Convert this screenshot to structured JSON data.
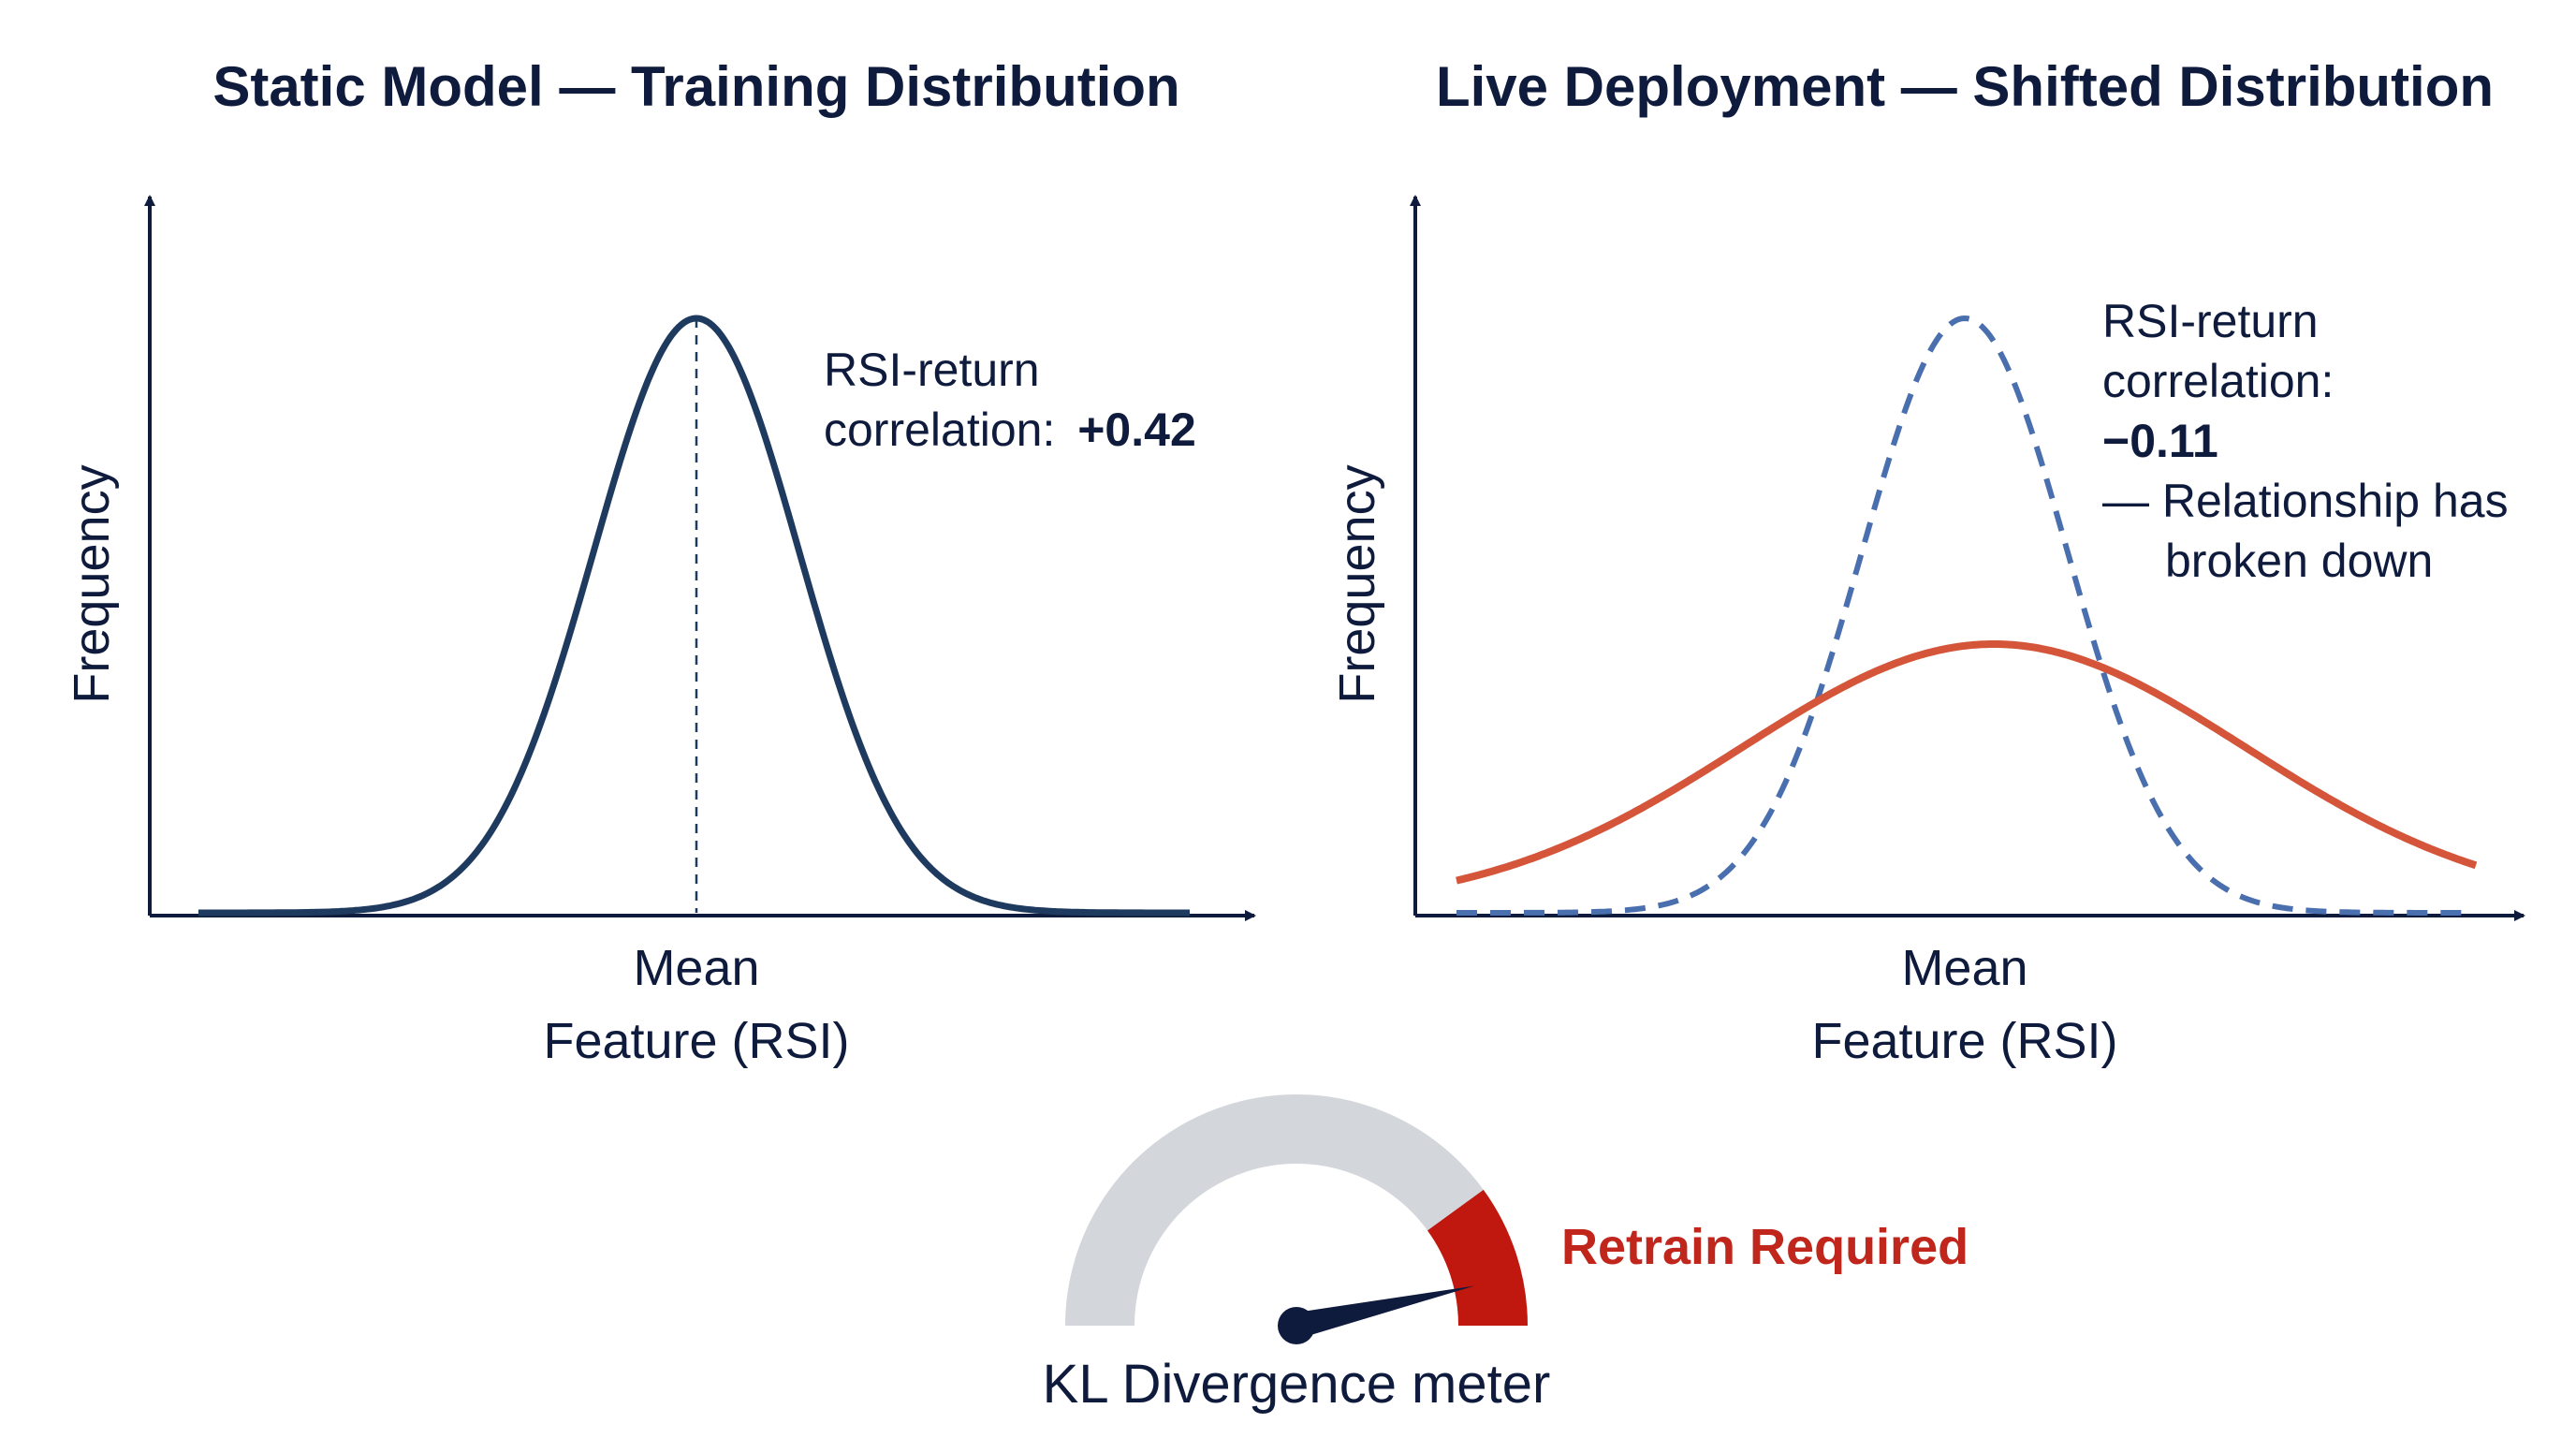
{
  "left_panel": {
    "title": "Static Model — Training Distribution",
    "ylabel": "Frequency",
    "xlabel_line1": "Mean",
    "xlabel_line2": "Feature (RSI)",
    "note_line1": "RSI-return",
    "note_line2_prefix": "correlation: ",
    "note_value": "+0.42"
  },
  "right_panel": {
    "title": "Live Deployment — Shifted Distribution",
    "ylabel": "Frequency",
    "xlabel_line1": "Mean",
    "xlabel_line2": "Feature (RSI)",
    "note_line1": "RSI-return",
    "note_line2": "correlation:",
    "note_value": "−0.11",
    "note_line4": "— Relationship has",
    "note_line5": "broken down"
  },
  "gauge": {
    "label": "KL Divergence meter",
    "alert_text": "Retrain Required",
    "level": 0.93,
    "danger_start": 0.8
  },
  "colors": {
    "navy": "#1e3a5f",
    "dashed_blue": "#4a6fae",
    "shifted_red": "#d4553a",
    "gauge_gray": "#d3d6db",
    "gauge_red": "#c0180f",
    "text": "#0f1b3d"
  }
}
